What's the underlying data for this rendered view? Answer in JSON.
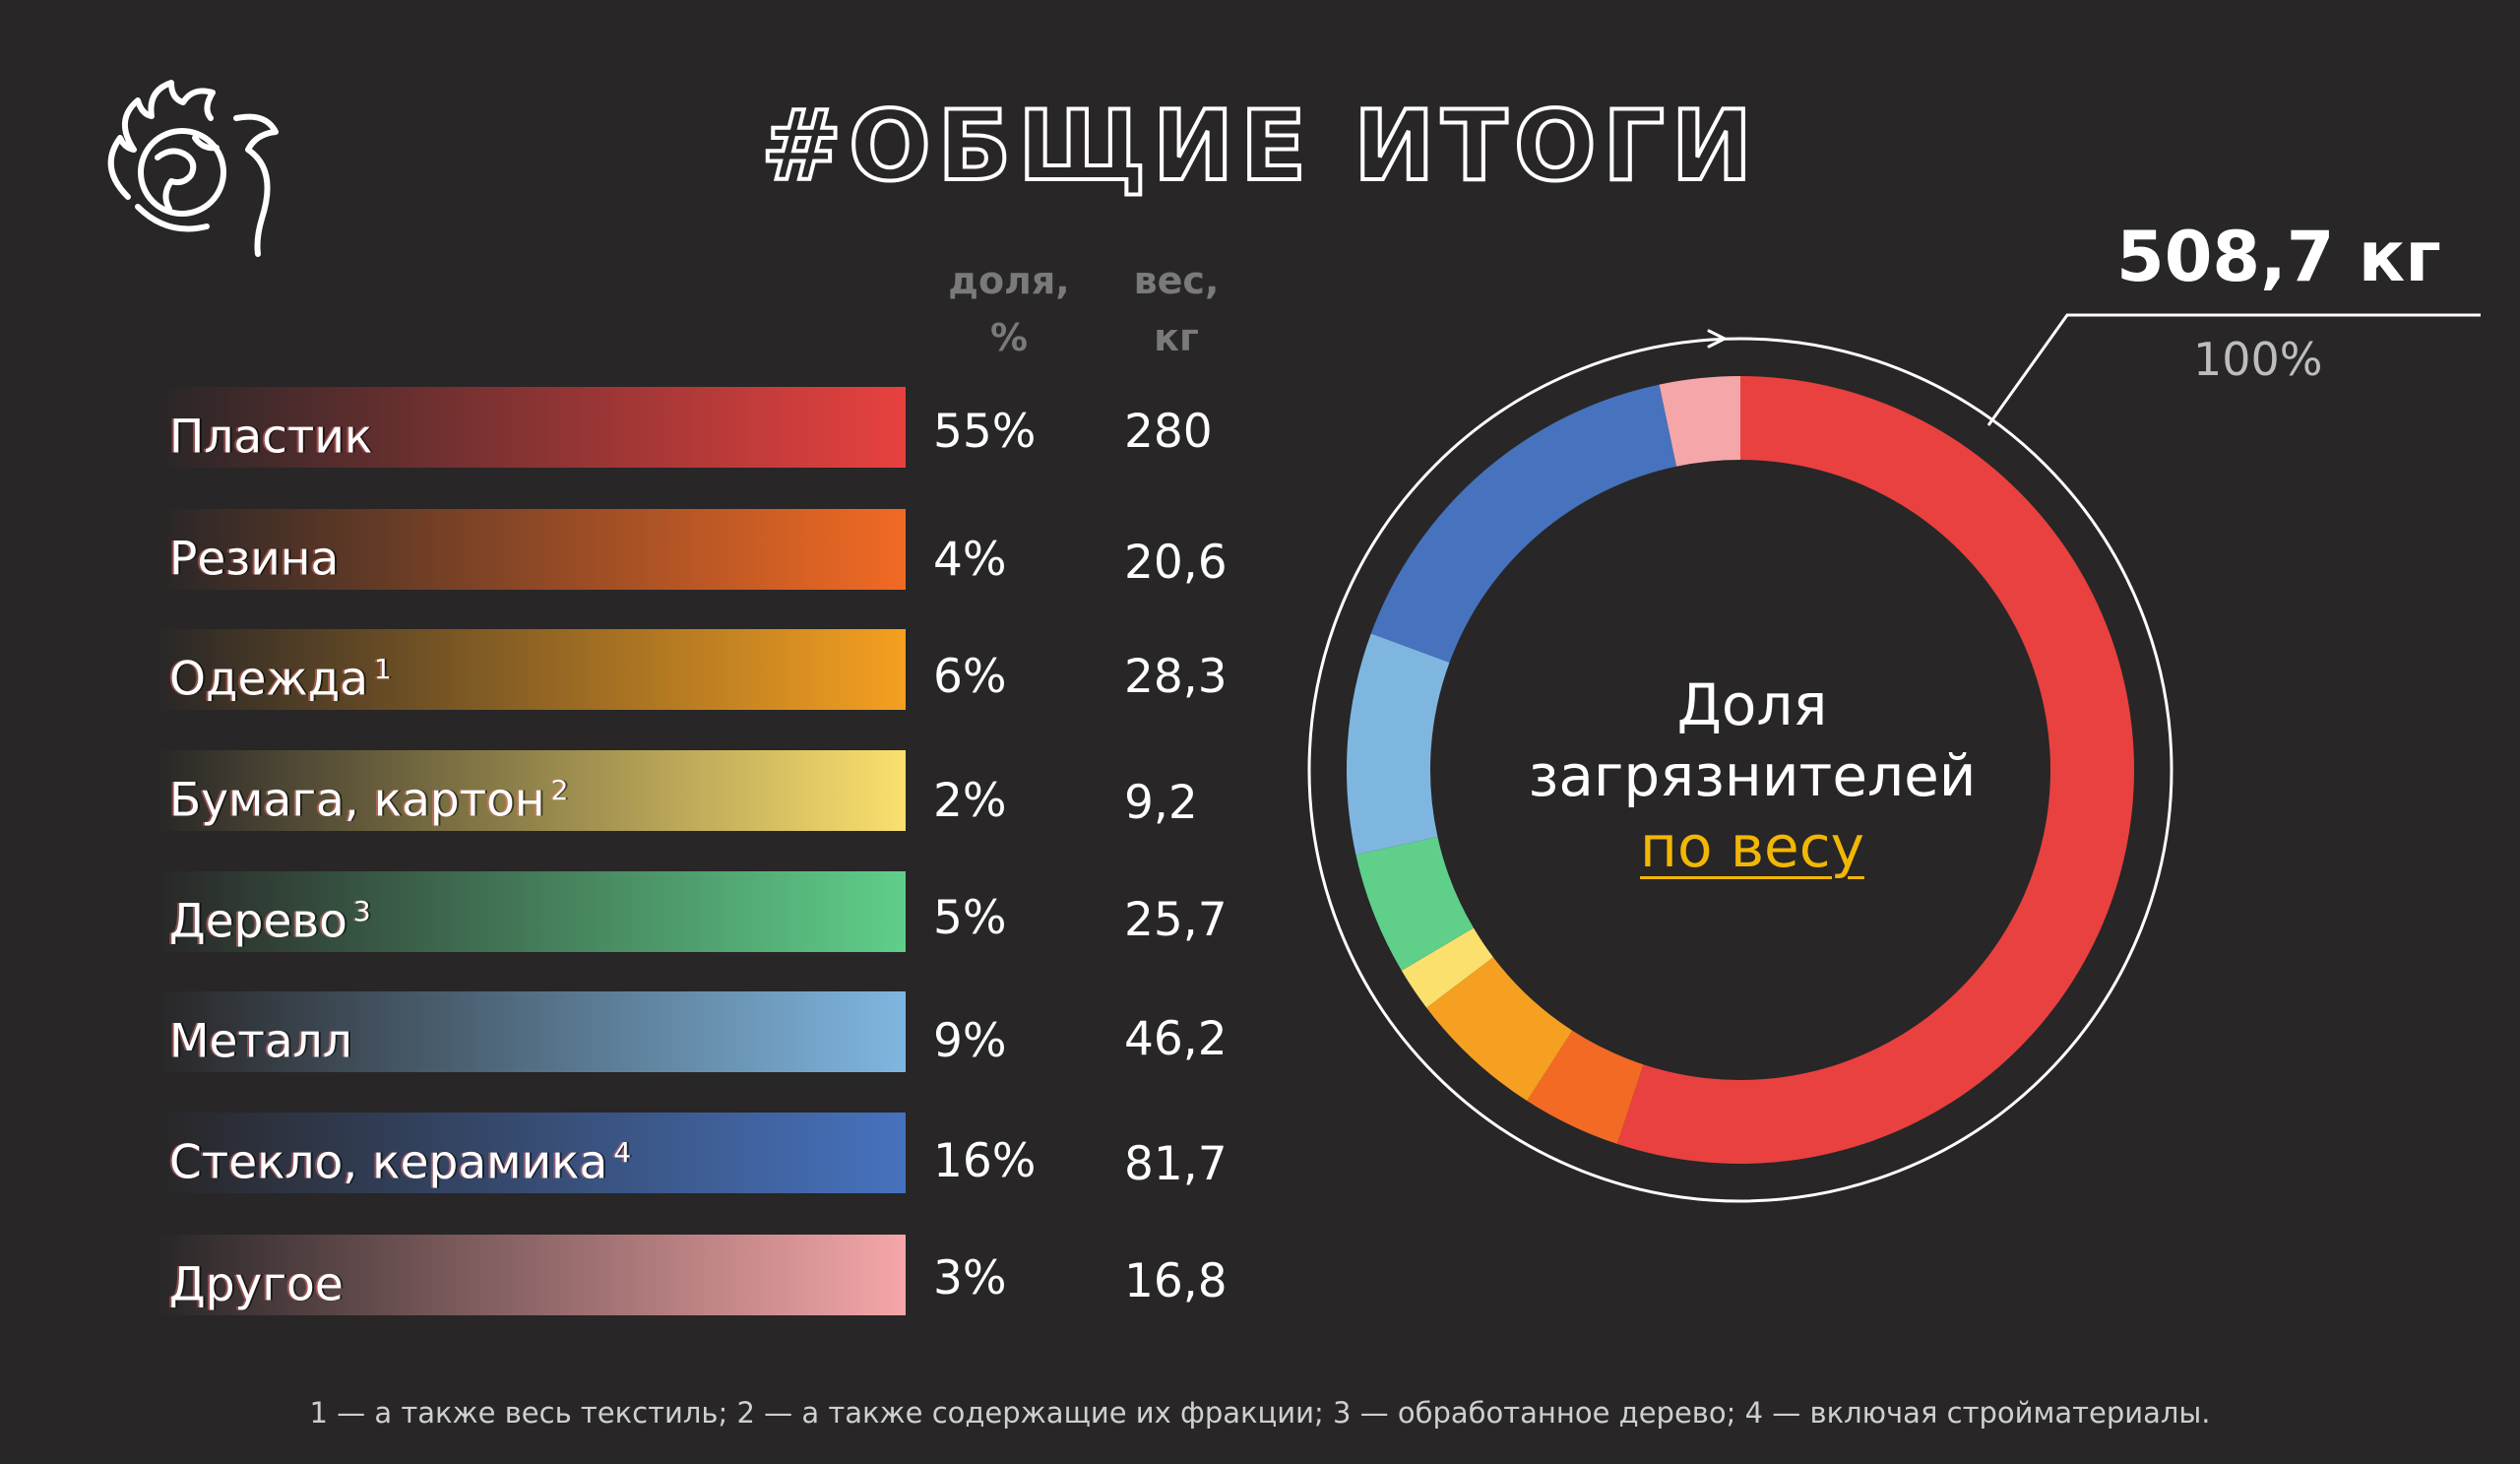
{
  "header": {
    "title": "#ОБЩИЕ ИТОГИ"
  },
  "columns": {
    "share_line1": "доля,",
    "share_line2": "%",
    "weight_line1": "вес,",
    "weight_line2": "кг"
  },
  "rows": [
    {
      "label": "Пластик",
      "note": "",
      "pct": "55%",
      "weight": "280",
      "color": "#e8413f"
    },
    {
      "label": "Резина",
      "note": "",
      "pct": "4%",
      "weight": "20,6",
      "color": "#f26a24"
    },
    {
      "label": "Одежда",
      "note": "1",
      "pct": "6%",
      "weight": "28,3",
      "color": "#f5a020"
    },
    {
      "label": "Бумага, картон",
      "note": "2",
      "pct": "2%",
      "weight": "9,2",
      "color": "#fbe06e"
    },
    {
      "label": "Дерево",
      "note": "3",
      "pct": "5%",
      "weight": "25,7",
      "color": "#5fcf8a"
    },
    {
      "label": "Металл",
      "note": "",
      "pct": "9%",
      "weight": "46,2",
      "color": "#7fb6e0"
    },
    {
      "label": "Стекло, керамика",
      "note": "4",
      "pct": "16%",
      "weight": "81,7",
      "color": "#4672be"
    },
    {
      "label": "Другое",
      "note": "",
      "pct": "3%",
      "weight": "16,8",
      "color": "#f5a6a8"
    }
  ],
  "donut": {
    "center_line1": "Доля",
    "center_line2": "загрязнителей",
    "center_link": "по весу",
    "total_value": "508,7 кг",
    "total_pct": "100%",
    "link_color": "#f2b705"
  },
  "chart_data": {
    "type": "pie",
    "title": "",
    "unit": "кг",
    "categories": [
      "Пластик",
      "Резина",
      "Одежда",
      "Бумага, картон",
      "Дерево",
      "Металл",
      "Стекло, керамика",
      "Другое"
    ],
    "values": [
      280,
      20.6,
      28.3,
      9.2,
      25.7,
      46.2,
      81.7,
      16.8
    ],
    "percent": [
      55,
      4,
      6,
      2,
      5,
      9,
      16,
      3
    ],
    "total": 508.7,
    "colors": [
      "#e8413f",
      "#f26a24",
      "#f5a020",
      "#fbe06e",
      "#5fcf8a",
      "#7fb6e0",
      "#4672be",
      "#f5a6a8"
    ],
    "direction": "clockwise from top"
  },
  "footnote": "1 — а также весь текстиль; 2 — а также содержащие их фракции; 3 — обработанное дерево; 4 — включая стройматериалы."
}
